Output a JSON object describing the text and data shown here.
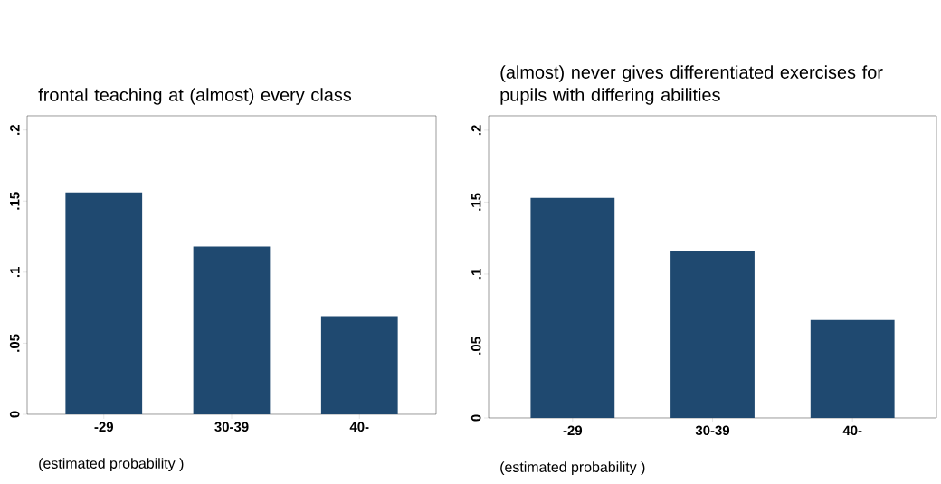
{
  "chart_data": [
    {
      "type": "bar",
      "title": "frontal teaching at (almost) every class",
      "categories": [
        "-29",
        "30-39",
        "40-"
      ],
      "values": [
        0.156,
        0.118,
        0.069
      ],
      "color": "#1f4970",
      "ylim": [
        0,
        0.21
      ],
      "yticks": [
        0,
        {
          "value": 0.05,
          "label": ".05"
        },
        {
          "value": 0.1,
          "label": ".1"
        },
        {
          "value": 0.15,
          "label": ".15"
        },
        {
          "value": 0.2,
          "label": ".2"
        }
      ],
      "annotations": [
        "(estimated probability )"
      ]
    },
    {
      "type": "bar",
      "title": "(almost) never gives differentiated exercises for pupils with differing abilities",
      "categories": [
        "-29",
        "30-39",
        "40-"
      ],
      "values": [
        0.153,
        0.116,
        0.068
      ],
      "color": "#1f4970",
      "ylim": [
        0,
        0.21
      ],
      "yticks": [
        0,
        {
          "value": 0.05,
          "label": ".05"
        },
        {
          "value": 0.1,
          "label": ".1"
        },
        {
          "value": 0.15,
          "label": ".15"
        },
        {
          "value": 0.2,
          "label": ".2"
        }
      ],
      "annotations": [
        "(estimated probability )"
      ]
    }
  ]
}
